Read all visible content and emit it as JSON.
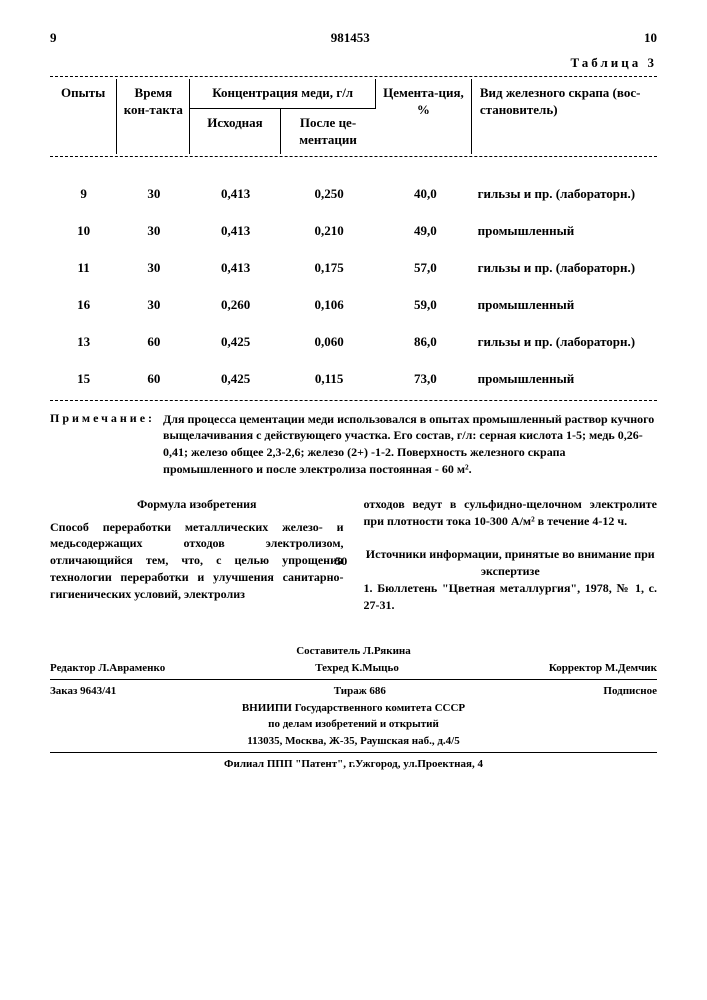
{
  "header": {
    "page_left": "9",
    "doc_number": "981453",
    "page_right": "10"
  },
  "table": {
    "title": "Таблица 3",
    "columns": {
      "c1": "Опыты",
      "c2": "Время кон-такта",
      "c3": "Концентрация меди, г/л",
      "c3a": "Исходная",
      "c3b": "После це-ментации",
      "c4": "Цемента-ция, %",
      "c5": "Вид железного скрапа (вос-становитель)"
    },
    "rows": [
      {
        "n": "9",
        "t": "30",
        "i": "0,413",
        "a": "0,250",
        "c": "40,0",
        "s": "гильзы и пр. (лабораторн.)"
      },
      {
        "n": "10",
        "t": "30",
        "i": "0,413",
        "a": "0,210",
        "c": "49,0",
        "s": "промышленный"
      },
      {
        "n": "11",
        "t": "30",
        "i": "0,413",
        "a": "0,175",
        "c": "57,0",
        "s": "гильзы и пр. (лабораторн.)"
      },
      {
        "n": "16",
        "t": "30",
        "i": "0,260",
        "a": "0,106",
        "c": "59,0",
        "s": "промышленный"
      },
      {
        "n": "13",
        "t": "60",
        "i": "0,425",
        "a": "0,060",
        "c": "86,0",
        "s": "гильзы и пр. (лабораторн.)"
      },
      {
        "n": "15",
        "t": "60",
        "i": "0,425",
        "a": "0,115",
        "c": "73,0",
        "s": "промышленный"
      }
    ]
  },
  "note": {
    "label": "Примечание:",
    "text": "Для процесса цементации меди использовался в опытах промышленный раствор кучного выщелачивания с действующего участка. Его состав, г/л: серная кислота 1-5; медь 0,26-0,41; железо общее 2,3-2,6; железо (2+) -1-2. Поверхность железного скрапа промышленного и после электролиза постоянная - 60 м²."
  },
  "formula": {
    "title": "Формула изобретения",
    "left": "Способ переработки металлических железо- и медьсодержащих отходов электролизом, отличающийся тем, что, с целью упрощения технологии переработки и улучшения санитарно-гигиенических условий, электролиз",
    "right_top": "отходов ведут в сульфидно-щелочном электролите при плотности тока 10-300 А/м² в течение 4-12 ч.",
    "sources_title": "Источники информации, принятые во внимание при экспертизе",
    "source1": "1. Бюллетень \"Цветная металлургия\", 1978, № 1, с. 27-31.",
    "line_num": "50"
  },
  "footer": {
    "compiler": "Составитель Л.Рякина",
    "editor": "Редактор Л.Авраменко",
    "techred": "Техред К.Мыцьо",
    "corrector": "Корректор М.Демчик",
    "order": "Заказ 9643/41",
    "tirage": "Тираж 686",
    "sub": "Подписное",
    "org1": "ВНИИПИ Государственного комитета СССР",
    "org2": "по делам изобретений и открытий",
    "addr1": "113035, Москва, Ж-35, Раушская наб., д.4/5",
    "addr2": "Филиал ППП \"Патент\", г.Ужгород, ул.Проектная, 4"
  }
}
